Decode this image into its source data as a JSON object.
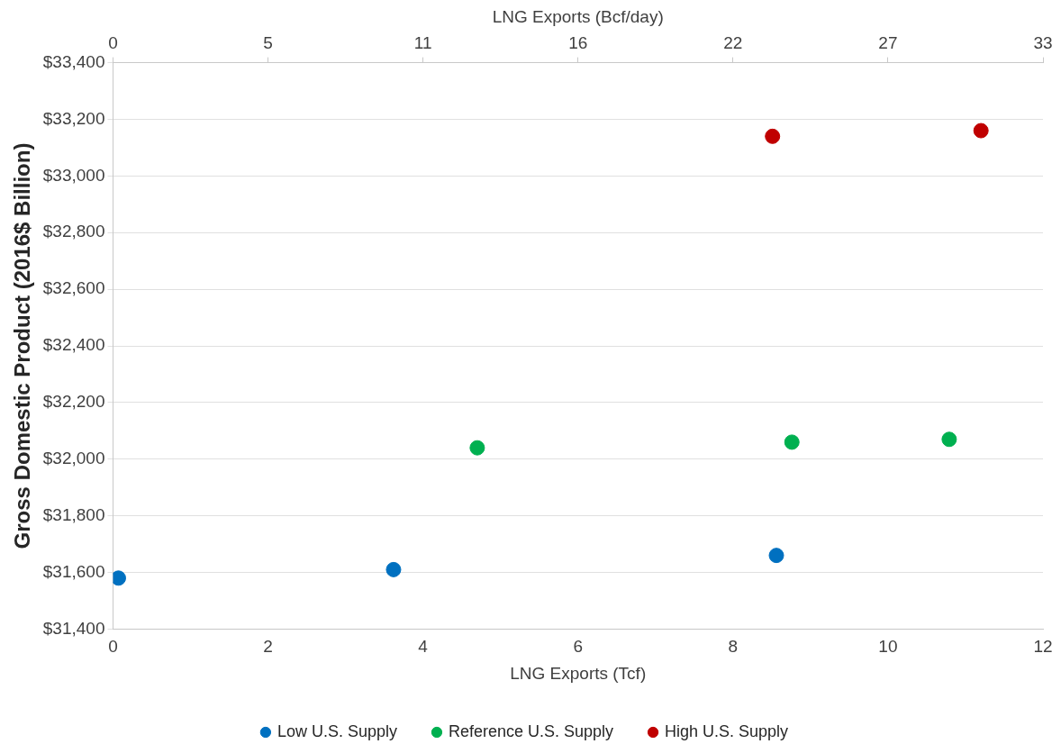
{
  "chart_data": {
    "type": "scatter",
    "xlabel": "LNG Exports (Tcf)",
    "x2label": "LNG Exports (Bcf/day)",
    "ylabel": "Gross Domestic Product (2016$ Billion)",
    "xlim": [
      0,
      12
    ],
    "xticks": [
      0,
      2,
      4,
      6,
      8,
      10,
      12
    ],
    "x2lim": [
      0,
      33
    ],
    "x2ticks": [
      0,
      {
        "value": 5.5,
        "label": "5"
      },
      11,
      {
        "value": 16.5,
        "label": "16"
      },
      22,
      {
        "value": 27.5,
        "label": "27"
      },
      33
    ],
    "ylim": [
      31400,
      33400
    ],
    "yticks": [
      {
        "value": 31400,
        "label": "$31,400"
      },
      {
        "value": 31600,
        "label": "$31,600"
      },
      {
        "value": 31800,
        "label": "$31,800"
      },
      {
        "value": 32000,
        "label": "$32,000"
      },
      {
        "value": 32200,
        "label": "$32,200"
      },
      {
        "value": 32400,
        "label": "$32,400"
      },
      {
        "value": 32600,
        "label": "$32,600"
      },
      {
        "value": 32800,
        "label": "$32,800"
      },
      {
        "value": 33000,
        "label": "$33,000"
      },
      {
        "value": 33200,
        "label": "$33,200"
      },
      {
        "value": 33400,
        "label": "$33,400"
      }
    ],
    "grid": "y",
    "legend": "bottom",
    "marker": "circle",
    "series": [
      {
        "name": "Low U.S. Supply",
        "color": "#0070c0",
        "x": [
          0.07,
          3.62,
          8.56
        ],
        "values": [
          31580,
          31610,
          31660
        ]
      },
      {
        "name": "Reference U.S. Supply",
        "color": "#00b050",
        "x": [
          4.7,
          8.76,
          10.79
        ],
        "values": [
          32040,
          32060,
          32070
        ]
      },
      {
        "name": "High U.S. Supply",
        "color": "#c00000",
        "x": [
          8.51,
          11.2
        ],
        "values": [
          33140,
          33160
        ]
      }
    ]
  }
}
